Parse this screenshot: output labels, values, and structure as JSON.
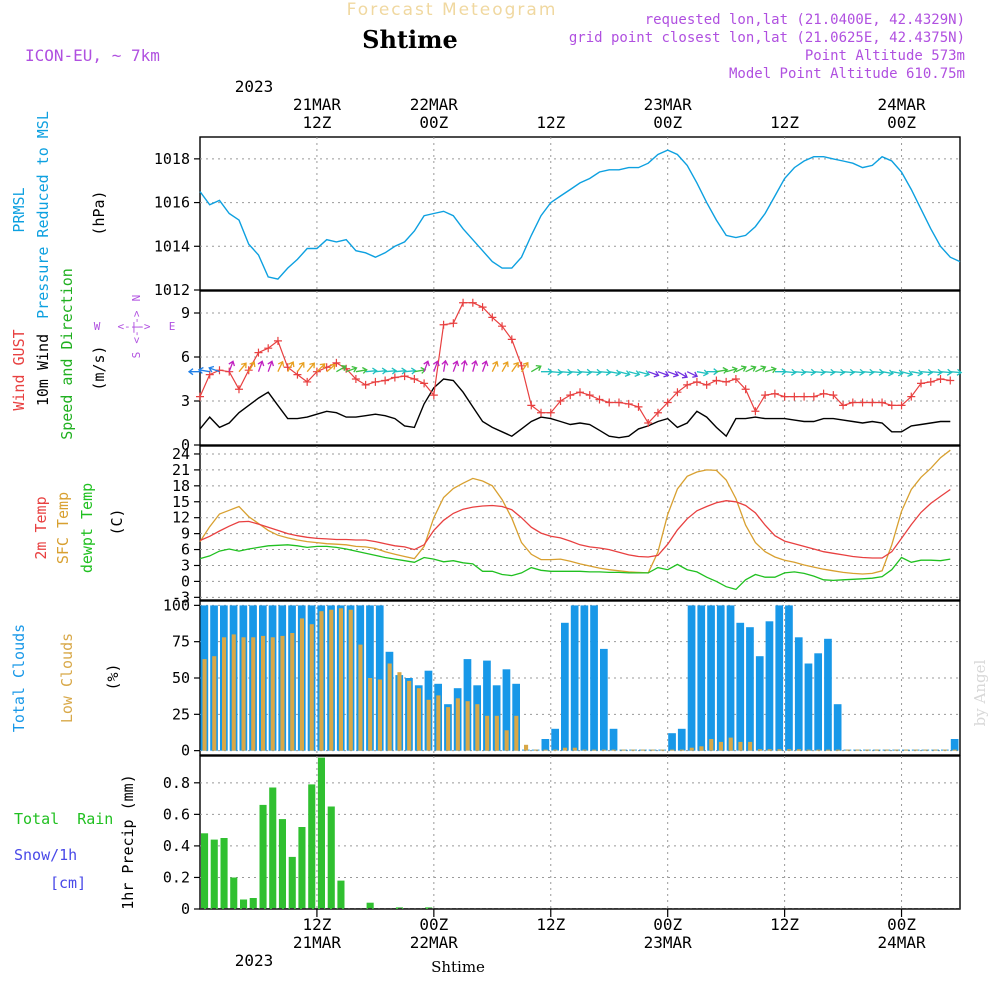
{
  "header": {
    "product": "Forecast Meteogram",
    "location": "Shtime",
    "model": "ICON-EU, ~ 7km",
    "info": [
      "requested lon,lat (21.0400E, 42.4329N)",
      "grid point closest lon,lat (21.0625E, 42.4375N)",
      "Point Altitude 573m",
      "Model Point Altitude 610.75m"
    ],
    "footer_location": "Shtime",
    "watermark": "by Angel"
  },
  "time_axis": {
    "year": "2023",
    "ticks": [
      {
        "hour": 12,
        "time": "12Z",
        "date": "21MAR"
      },
      {
        "hour": 24,
        "time": "00Z",
        "date": "22MAR"
      },
      {
        "hour": 36,
        "time": "12Z",
        "date": ""
      },
      {
        "hour": 48,
        "time": "00Z",
        "date": "23MAR"
      },
      {
        "hour": 60,
        "time": "12Z",
        "date": ""
      },
      {
        "hour": 72,
        "time": "00Z",
        "date": "24MAR"
      }
    ]
  },
  "colors": {
    "pressure": "#0da0e0",
    "gust": "#e84040",
    "wind": "#000000",
    "temp2m": "#e84040",
    "sfc": "#d8a030",
    "dewpt": "#20c020",
    "total_clouds": "#1898e8",
    "low_clouds": "#d8a848",
    "rain": "#30c030",
    "snow": "#4848e8",
    "label_purple": "#b050e0"
  },
  "panels": {
    "pressure": {
      "labels": [
        "PRMSL",
        "Pressure Reduced to MSL",
        "(hPa)"
      ],
      "yticks": [
        "1012",
        "1014",
        "1016",
        "1018"
      ]
    },
    "wind": {
      "labels": [
        "Wind GUST",
        "10m Wind",
        "Speed and Direction",
        "(m/s)"
      ],
      "yticks": [
        "0",
        "3",
        "6",
        "9"
      ],
      "compass": {
        "n": "N",
        "s": "S",
        "w": "W",
        "e": "E",
        "arrows": "<-|->"
      }
    },
    "temperature": {
      "labels": [
        "2m Temp",
        "SFC Temp",
        "dewpt Temp",
        "(C)"
      ],
      "yticks": [
        "-3",
        "0",
        "3",
        "6",
        "9",
        "12",
        "15",
        "18",
        "21",
        "24"
      ]
    },
    "clouds": {
      "labels": [
        "Total Clouds",
        "Low Clouds",
        "(%)"
      ],
      "yticks": [
        "0",
        "25",
        "50",
        "75",
        "100"
      ]
    },
    "precip": {
      "labels": [
        "Total Rain",
        "Snow/1h",
        "[cm]",
        "1hr Precip (mm)"
      ],
      "yticks": [
        "0",
        "0.2",
        "0.4",
        "0.6",
        "0.8"
      ]
    }
  },
  "chart_data": {
    "type": "line",
    "x_unit": "hours since 2023-03-21 06Z",
    "x_range": [
      0,
      78
    ],
    "pressure": {
      "ylim": [
        1012,
        1019
      ],
      "x": [
        0,
        1,
        2,
        3,
        4,
        5,
        6,
        7,
        8,
        9,
        10,
        11,
        12,
        13,
        14,
        15,
        16,
        17,
        18,
        19,
        20,
        21,
        22,
        23,
        24,
        25,
        26,
        27,
        28,
        29,
        30,
        31,
        32,
        33,
        34,
        35,
        36,
        37,
        38,
        39,
        40,
        41,
        42,
        43,
        44,
        45,
        46,
        47,
        48,
        49,
        50,
        51,
        52,
        53,
        54,
        55,
        56,
        57,
        58,
        59,
        60,
        61,
        62,
        63,
        64,
        65,
        66,
        67,
        68,
        69,
        70,
        71,
        72,
        73,
        74,
        75,
        76,
        77,
        78
      ],
      "values": [
        1016.5,
        1015.9,
        1016.1,
        1015.5,
        1015.2,
        1014.1,
        1013.6,
        1012.6,
        1012.5,
        1013.0,
        1013.4,
        1013.9,
        1013.9,
        1014.3,
        1014.2,
        1014.3,
        1013.8,
        1013.7,
        1013.5,
        1013.7,
        1014.0,
        1014.2,
        1014.7,
        1015.4,
        1015.5,
        1015.6,
        1015.4,
        1014.8,
        1014.3,
        1013.8,
        1013.3,
        1013.0,
        1013.0,
        1013.5,
        1014.5,
        1015.4,
        1016.0,
        1016.3,
        1016.6,
        1016.9,
        1017.1,
        1017.4,
        1017.5,
        1017.5,
        1017.6,
        1017.6,
        1017.8,
        1018.2,
        1018.4,
        1018.2,
        1017.7,
        1016.9,
        1016.0,
        1015.2,
        1014.5,
        1014.4,
        1014.5,
        1014.9,
        1015.5,
        1016.3,
        1017.1,
        1017.6,
        1017.9,
        1018.1,
        1018.1,
        1018.0,
        1017.9,
        1017.8,
        1017.6,
        1017.7,
        1018.1,
        1017.9,
        1017.4,
        1016.6,
        1015.7,
        1014.8,
        1014.0,
        1013.5,
        1013.3
      ]
    },
    "wind": {
      "ylim": [
        0,
        10.5
      ],
      "x": [
        0,
        1,
        2,
        3,
        4,
        5,
        6,
        7,
        8,
        9,
        10,
        11,
        12,
        13,
        14,
        15,
        16,
        17,
        18,
        19,
        20,
        21,
        22,
        23,
        24,
        25,
        26,
        27,
        28,
        29,
        30,
        31,
        32,
        33,
        34,
        35,
        36,
        37,
        38,
        39,
        40,
        41,
        42,
        43,
        44,
        45,
        46,
        47,
        48,
        49,
        50,
        51,
        52,
        53,
        54,
        55,
        56,
        57,
        58,
        59,
        60,
        61,
        62,
        63,
        64,
        65,
        66,
        67,
        68,
        69,
        70,
        71,
        72,
        73,
        74,
        75,
        76,
        77
      ],
      "gust": [
        3.3,
        4.8,
        5.1,
        5.0,
        3.8,
        5.1,
        6.3,
        6.6,
        7.1,
        5.3,
        4.8,
        4.3,
        5.0,
        5.3,
        5.6,
        5.2,
        4.5,
        4.1,
        4.3,
        4.4,
        4.6,
        4.7,
        4.5,
        4.2,
        3.4,
        8.2,
        8.3,
        9.7,
        9.7,
        9.4,
        8.7,
        8.1,
        7.2,
        5.4,
        2.7,
        2.2,
        2.2,
        3.0,
        3.4,
        3.6,
        3.4,
        3.1,
        2.9,
        2.9,
        2.8,
        2.6,
        1.5,
        2.2,
        2.9,
        3.6,
        4.1,
        4.3,
        4.1,
        4.4,
        4.3,
        4.5,
        3.8,
        2.3,
        3.4,
        3.5,
        3.3,
        3.3,
        3.3,
        3.3,
        3.5,
        3.4,
        2.7,
        2.9,
        2.9,
        2.9,
        2.9,
        2.7,
        2.7,
        3.3,
        4.2,
        4.3,
        4.5,
        4.4
      ],
      "speed": [
        1.1,
        1.9,
        1.2,
        1.5,
        2.2,
        2.7,
        3.2,
        3.6,
        2.7,
        1.8,
        1.8,
        1.9,
        2.1,
        2.3,
        2.2,
        1.9,
        1.9,
        2.0,
        2.1,
        2.0,
        1.8,
        1.3,
        1.2,
        2.8,
        3.9,
        4.5,
        4.4,
        3.6,
        2.6,
        1.6,
        1.2,
        0.9,
        0.6,
        1.1,
        1.6,
        1.9,
        1.8,
        1.6,
        1.4,
        1.5,
        1.4,
        1.0,
        0.6,
        0.5,
        0.6,
        1.1,
        1.3,
        1.6,
        1.8,
        1.2,
        1.5,
        2.3,
        1.9,
        1.2,
        0.6,
        1.8,
        1.8,
        1.9,
        1.8,
        1.8,
        1.8,
        1.7,
        1.6,
        1.6,
        1.8,
        1.8,
        1.7,
        1.6,
        1.5,
        1.6,
        1.5,
        0.9,
        0.9,
        1.3,
        1.4,
        1.5,
        1.6,
        1.6
      ],
      "dir_deg": [
        90,
        100,
        110,
        200,
        220,
        210,
        200,
        200,
        205,
        210,
        215,
        220,
        225,
        230,
        240,
        250,
        260,
        265,
        265,
        265,
        265,
        265,
        260,
        200,
        200,
        190,
        200,
        190,
        195,
        200,
        205,
        210,
        215,
        215,
        240,
        270,
        275,
        275,
        275,
        275,
        275,
        275,
        280,
        285,
        285,
        285,
        290,
        290,
        290,
        300,
        295,
        280,
        270,
        260,
        255,
        245,
        245,
        245,
        255,
        270,
        275,
        275,
        275,
        275,
        275,
        275,
        275,
        275,
        275,
        275,
        280,
        280,
        285,
        280,
        275,
        275,
        275,
        275
      ]
    },
    "temperature": {
      "ylim": [
        -3.5,
        25.5
      ],
      "x": [
        0,
        1,
        2,
        3,
        4,
        5,
        6,
        7,
        8,
        9,
        10,
        11,
        12,
        13,
        14,
        15,
        16,
        17,
        18,
        19,
        20,
        21,
        22,
        23,
        24,
        25,
        26,
        27,
        28,
        29,
        30,
        31,
        32,
        33,
        34,
        35,
        36,
        37,
        38,
        39,
        40,
        41,
        42,
        43,
        44,
        45,
        46,
        47,
        48,
        49,
        50,
        51,
        52,
        53,
        54,
        55,
        56,
        57,
        58,
        59,
        60,
        61,
        62,
        63,
        64,
        65,
        66,
        67,
        68,
        69,
        70,
        71,
        72,
        73,
        74,
        75,
        76,
        77
      ],
      "t2m": [
        7.7,
        8.5,
        9.5,
        10.4,
        11.2,
        11.3,
        10.8,
        10.2,
        9.6,
        9.0,
        8.6,
        8.3,
        8.1,
        8.0,
        7.9,
        7.9,
        7.8,
        7.8,
        7.5,
        7.1,
        6.7,
        6.5,
        6.0,
        6.9,
        9.6,
        11.5,
        12.8,
        13.6,
        14.0,
        14.2,
        14.3,
        14.1,
        13.5,
        12.0,
        10.2,
        9.1,
        8.5,
        8.2,
        7.6,
        6.9,
        6.5,
        6.3,
        6.0,
        5.5,
        5.0,
        4.7,
        4.6,
        4.9,
        7.0,
        9.7,
        11.8,
        13.3,
        14.1,
        14.8,
        15.2,
        15.0,
        14.3,
        12.9,
        10.6,
        8.6,
        7.6,
        7.1,
        6.6,
        6.1,
        5.6,
        5.3,
        5.0,
        4.7,
        4.5,
        4.4,
        4.4,
        5.6,
        8.1,
        10.7,
        13.0,
        14.7,
        16.0,
        17.3
      ],
      "sfc": [
        7.5,
        10.3,
        12.7,
        13.4,
        14.1,
        12.2,
        10.9,
        9.6,
        8.7,
        8.2,
        7.8,
        7.5,
        7.3,
        7.1,
        7.0,
        6.9,
        6.6,
        6.5,
        6.2,
        5.6,
        5.1,
        4.7,
        4.3,
        6.6,
        12.0,
        15.8,
        17.5,
        18.5,
        19.4,
        18.9,
        18.0,
        15.4,
        11.9,
        7.3,
        5.1,
        4.1,
        4.1,
        4.2,
        3.8,
        3.3,
        2.9,
        2.5,
        2.2,
        2.0,
        1.8,
        1.7,
        1.6,
        5.5,
        12.6,
        17.4,
        19.8,
        20.6,
        21.0,
        20.9,
        19.1,
        15.6,
        10.6,
        7.3,
        5.6,
        4.6,
        4.0,
        3.6,
        3.1,
        2.7,
        2.3,
        2.0,
        1.7,
        1.5,
        1.4,
        1.5,
        2.0,
        6.9,
        13.2,
        17.3,
        19.6,
        21.3,
        23.3,
        24.7
      ],
      "dewpt": [
        4.3,
        4.8,
        5.7,
        6.1,
        5.7,
        6.1,
        6.4,
        6.7,
        6.8,
        6.9,
        6.7,
        6.4,
        6.6,
        6.6,
        6.4,
        6.1,
        5.7,
        5.3,
        4.9,
        4.5,
        4.2,
        3.9,
        3.6,
        4.5,
        4.2,
        3.7,
        3.9,
        3.5,
        3.3,
        1.9,
        1.9,
        1.3,
        1.1,
        1.6,
        2.6,
        2.1,
        1.9,
        1.9,
        1.9,
        1.9,
        1.8,
        1.8,
        1.7,
        1.7,
        1.6,
        1.6,
        1.6,
        2.6,
        2.2,
        3.2,
        2.2,
        1.8,
        0.8,
        0.0,
        -1.0,
        -1.5,
        0.3,
        1.3,
        0.8,
        0.8,
        1.6,
        1.8,
        1.5,
        1.0,
        0.3,
        0.2,
        0.3,
        0.4,
        0.5,
        0.6,
        0.9,
        2.2,
        4.5,
        3.6,
        4.0,
        4.0,
        3.9,
        4.2
      ]
    },
    "clouds": {
      "ylim": [
        -3,
        103
      ],
      "x": [
        0,
        1,
        2,
        3,
        4,
        5,
        6,
        7,
        8,
        9,
        10,
        11,
        12,
        13,
        14,
        15,
        16,
        17,
        18,
        19,
        20,
        21,
        22,
        23,
        24,
        25,
        26,
        27,
        28,
        29,
        30,
        31,
        32,
        33,
        34,
        35,
        36,
        37,
        38,
        39,
        40,
        41,
        42,
        43,
        44,
        45,
        46,
        47,
        48,
        49,
        50,
        51,
        52,
        53,
        54,
        55,
        56,
        57,
        58,
        59,
        60,
        61,
        62,
        63,
        64,
        65,
        66,
        67,
        68,
        69,
        70,
        71,
        72,
        73,
        74,
        75,
        76,
        77
      ],
      "total": [
        100,
        100,
        100,
        100,
        100,
        100,
        100,
        100,
        100,
        100,
        100,
        100,
        100,
        100,
        100,
        100,
        100,
        100,
        100,
        68,
        52,
        50,
        45,
        55,
        46,
        32,
        43,
        63,
        45,
        62,
        45,
        56,
        46,
        0,
        0,
        8,
        15,
        88,
        100,
        100,
        100,
        70,
        15,
        0,
        0,
        0,
        0,
        0,
        12,
        15,
        100,
        100,
        100,
        100,
        100,
        88,
        85,
        65,
        89,
        100,
        100,
        78,
        60,
        67,
        77,
        32,
        0,
        0,
        0,
        0,
        0,
        0,
        0,
        0,
        0,
        0,
        0,
        8
      ],
      "low": [
        63,
        65,
        78,
        80,
        78,
        78,
        79,
        78,
        79,
        81,
        91,
        87,
        96,
        97,
        98,
        97,
        73,
        50,
        49,
        60,
        54,
        48,
        43,
        35,
        38,
        30,
        36,
        34,
        32,
        24,
        24,
        14,
        24,
        4,
        0,
        0,
        0,
        2,
        2,
        0,
        0,
        0,
        0,
        0,
        0,
        0,
        0,
        0,
        0,
        0,
        2,
        3,
        8,
        6,
        9,
        6,
        6,
        1,
        1,
        1,
        1,
        1,
        0,
        0,
        0,
        0,
        0,
        0,
        0,
        0,
        0,
        0,
        0,
        0,
        0,
        0,
        0,
        0
      ]
    },
    "precip": {
      "ylim": [
        0,
        0.97
      ],
      "x": [
        0,
        1,
        2,
        3,
        4,
        5,
        6,
        7,
        8,
        9,
        10,
        11,
        12,
        13,
        14,
        15,
        16,
        17,
        18,
        19,
        20,
        21,
        22,
        23,
        24,
        25,
        26,
        27,
        28,
        29,
        30,
        31,
        32,
        33,
        34,
        35,
        36,
        37,
        38,
        39,
        40,
        41,
        42,
        43,
        44,
        45,
        46,
        47,
        48,
        49,
        50,
        51,
        52,
        53,
        54,
        55,
        56,
        57,
        58,
        59,
        60,
        61,
        62,
        63,
        64,
        65,
        66,
        67,
        68,
        69,
        70,
        71,
        72,
        73,
        74,
        75,
        76,
        77
      ],
      "rain": [
        0.48,
        0.44,
        0.45,
        0.2,
        0.06,
        0.07,
        0.66,
        0.77,
        0.57,
        0.33,
        0.52,
        0.79,
        0.96,
        0.65,
        0.18,
        0.0,
        0.0,
        0.04,
        0.0,
        0.0,
        0.01,
        0.0,
        0.0,
        0.01,
        0.0,
        0.0,
        0.0,
        0.0,
        0.0,
        0.0,
        0.0,
        0.0,
        0.0,
        0.0,
        0.0,
        0.0,
        0.0,
        0.0,
        0.0,
        0.0,
        0.0,
        0.0,
        0.0,
        0.0,
        0.0,
        0.0,
        0.0,
        0.0,
        0.0,
        0.0,
        0.0,
        0.0,
        0.0,
        0.0,
        0.0,
        0.0,
        0.0,
        0.0,
        0.0,
        0.0,
        0.0,
        0.0,
        0.0,
        0.0,
        0.0,
        0.0,
        0.0,
        0.0,
        0.0,
        0.0,
        0.0,
        0.0,
        0.0,
        0.0,
        0.0,
        0.0,
        0.0,
        0.0
      ],
      "snow": [
        0,
        0,
        0,
        0,
        0,
        0,
        0,
        0,
        0,
        0,
        0,
        0,
        0,
        0,
        0,
        0,
        0,
        0,
        0,
        0,
        0,
        0,
        0,
        0,
        0,
        0,
        0,
        0,
        0,
        0,
        0,
        0,
        0,
        0,
        0,
        0,
        0,
        0,
        0,
        0,
        0,
        0,
        0,
        0,
        0,
        0,
        0,
        0,
        0,
        0,
        0,
        0,
        0,
        0,
        0,
        0,
        0,
        0,
        0,
        0,
        0,
        0,
        0,
        0,
        0,
        0,
        0,
        0,
        0,
        0,
        0,
        0,
        0,
        0,
        0,
        0,
        0,
        0
      ]
    }
  }
}
